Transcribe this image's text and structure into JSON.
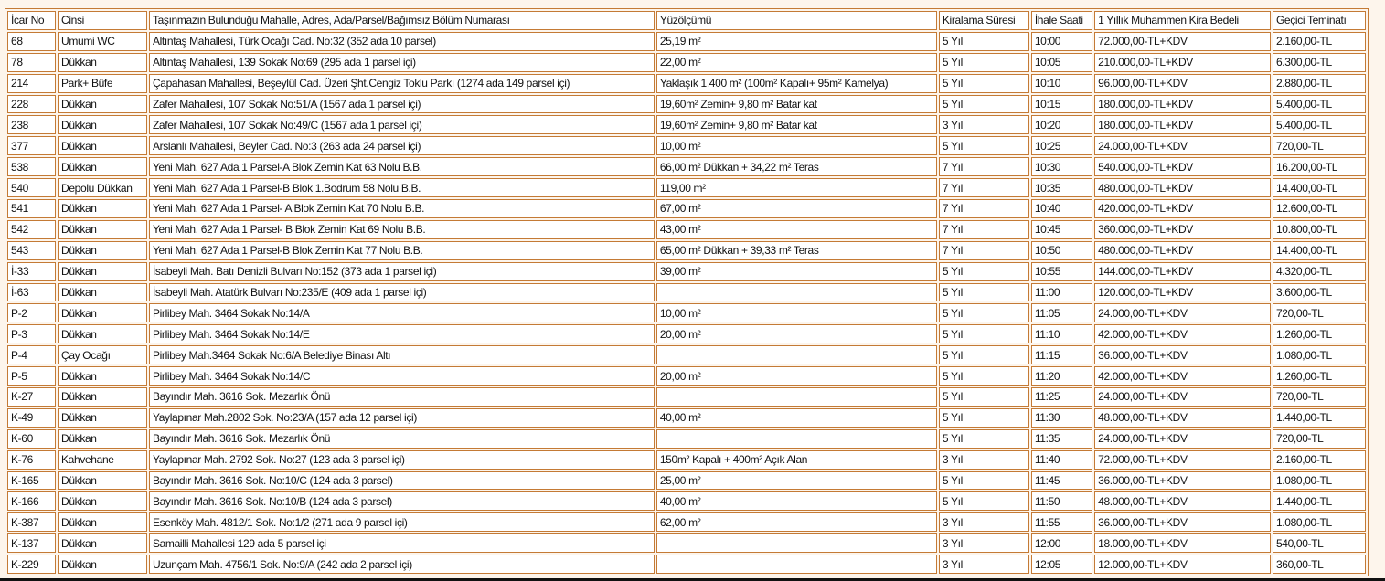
{
  "table": {
    "headers": [
      "İcar No",
      "Cinsi",
      "Taşınmazın Bulunduğu Mahalle, Adres, Ada/Parsel/Bağımsız Bölüm Numarası",
      "Yüzölçümü",
      "Kiralama Süresi",
      "İhale Saati",
      "1 Yıllık Muhammen Kira Bedeli",
      "Geçici Teminatı"
    ],
    "rows": [
      [
        "68",
        "Umumi WC",
        "Altıntaş Mahallesi, Türk Ocağı Cad. No:32 (352 ada 10 parsel)",
        "25,19 m²",
        "5 Yıl",
        "10:00",
        "72.000,00-TL+KDV",
        "2.160,00-TL"
      ],
      [
        "78",
        "Dükkan",
        "Altıntaş Mahallesi, 139 Sokak No:69 (295 ada 1 parsel içi)",
        "22,00 m²",
        "5 Yıl",
        "10:05",
        "210.000,00-TL+KDV",
        "6.300,00-TL"
      ],
      [
        "214",
        "Park+ Büfe",
        "Çapahasan Mahallesi, Beşeylül Cad. Üzeri Şht.Cengiz Toklu Parkı (1274 ada 149 parsel içi)",
        "Yaklaşık 1.400 m² (100m² Kapalı+ 95m² Kamelya)",
        "5 Yıl",
        "10:10",
        "96.000,00-TL+KDV",
        "2.880,00-TL"
      ],
      [
        "228",
        "Dükkan",
        "Zafer Mahallesi, 107 Sokak No:51/A (1567 ada 1 parsel içi)",
        "19,60m² Zemin+ 9,80 m² Batar kat",
        "5 Yıl",
        "10:15",
        "180.000,00-TL+KDV",
        "5.400,00-TL"
      ],
      [
        "238",
        "Dükkan",
        "Zafer Mahallesi, 107 Sokak No:49/C (1567 ada 1 parsel içi)",
        "19,60m² Zemin+ 9,80 m² Batar kat",
        "3 Yıl",
        "10:20",
        "180.000,00-TL+KDV",
        "5.400,00-TL"
      ],
      [
        "377",
        "Dükkan",
        "Arslanlı Mahallesi, Beyler Cad. No:3 (263 ada 24 parsel içi)",
        "10,00 m²",
        "5 Yıl",
        "10:25",
        "24.000,00-TL+KDV",
        "720,00-TL"
      ],
      [
        "538",
        "Dükkan",
        "Yeni Mah. 627 Ada 1 Parsel-A Blok Zemin Kat 63 Nolu B.B.",
        "66,00 m² Dükkan + 34,22 m² Teras",
        "7 Yıl",
        "10:30",
        "540.000,00-TL+KDV",
        "16.200,00-TL"
      ],
      [
        "540",
        "Depolu Dükkan",
        "Yeni Mah. 627 Ada 1 Parsel-B Blok 1.Bodrum 58 Nolu B.B.",
        "119,00 m²",
        "7 Yıl",
        "10:35",
        "480.000,00-TL+KDV",
        "14.400,00-TL"
      ],
      [
        "541",
        "Dükkan",
        "Yeni Mah. 627 Ada 1 Parsel- A Blok Zemin Kat 70 Nolu B.B.",
        "67,00 m²",
        "7 Yıl",
        "10:40",
        "420.000,00-TL+KDV",
        "12.600,00-TL"
      ],
      [
        "542",
        "Dükkan",
        "Yeni Mah. 627 Ada 1 Parsel- B Blok Zemin Kat 69 Nolu B.B.",
        "43,00 m²",
        "7 Yıl",
        "10:45",
        "360.000,00-TL+KDV",
        "10.800,00-TL"
      ],
      [
        "543",
        "Dükkan",
        "Yeni Mah. 627 Ada 1 Parsel-B Blok Zemin Kat 77 Nolu B.B.",
        "65,00 m² Dükkan + 39,33 m² Teras",
        "7 Yıl",
        "10:50",
        "480.000,00-TL+KDV",
        "14.400,00-TL"
      ],
      [
        "İ-33",
        "Dükkan",
        "İsabeyli Mah. Batı Denizli Bulvarı No:152 (373 ada 1 parsel içi)",
        "39,00 m²",
        "5 Yıl",
        "10:55",
        "144.000,00-TL+KDV",
        "4.320,00-TL"
      ],
      [
        "İ-63",
        "Dükkan",
        "İsabeyli Mah. Atatürk Bulvarı No:235/E (409 ada 1 parsel içi)",
        "",
        "5 Yıl",
        "11:00",
        "120.000,00-TL+KDV",
        "3.600,00-TL"
      ],
      [
        "P-2",
        "Dükkan",
        "Pirlibey Mah. 3464 Sokak No:14/A",
        "10,00 m²",
        "5 Yıl",
        "11:05",
        "24.000,00-TL+KDV",
        "720,00-TL"
      ],
      [
        "P-3",
        "Dükkan",
        "Pirlibey Mah. 3464 Sokak No:14/E",
        "20,00 m²",
        "5 Yıl",
        "11:10",
        "42.000,00-TL+KDV",
        "1.260,00-TL"
      ],
      [
        "P-4",
        "Çay Ocağı",
        "Pirlibey Mah.3464 Sokak No:6/A Belediye Binası Altı",
        "",
        "5 Yıl",
        "11:15",
        "36.000,00-TL+KDV",
        "1.080,00-TL"
      ],
      [
        "P-5",
        "Dükkan",
        "Pirlibey Mah. 3464 Sokak No:14/C",
        "20,00 m²",
        "5 Yıl",
        "11:20",
        "42.000,00-TL+KDV",
        "1.260,00-TL"
      ],
      [
        "K-27",
        "Dükkan",
        "Bayındır Mah. 3616 Sok. Mezarlık Önü",
        "",
        "5 Yıl",
        "11:25",
        "24.000,00-TL+KDV",
        "720,00-TL"
      ],
      [
        "K-49",
        "Dükkan",
        "Yaylapınar Mah.2802 Sok. No:23/A (157 ada 12 parsel içi)",
        "40,00 m²",
        "5 Yıl",
        "11:30",
        "48.000,00-TL+KDV",
        "1.440,00-TL"
      ],
      [
        "K-60",
        "Dükkan",
        "Bayındır Mah. 3616 Sok. Mezarlık  Önü",
        "",
        "5 Yıl",
        "11:35",
        "24.000,00-TL+KDV",
        "720,00-TL"
      ],
      [
        "K-76",
        "Kahvehane",
        "Yaylapınar Mah. 2792 Sok. No:27 (123 ada 3 parsel içi)",
        "150m² Kapalı + 400m² Açık  Alan",
        "3 Yıl",
        "11:40",
        "72.000,00-TL+KDV",
        "2.160,00-TL"
      ],
      [
        "K-165",
        "Dükkan",
        "Bayındır Mah. 3616 Sok. No:10/C (124 ada 3 parsel)",
        "25,00 m²",
        "5 Yıl",
        "11:45",
        "36.000,00-TL+KDV",
        "1.080,00-TL"
      ],
      [
        "K-166",
        "Dükkan",
        "Bayındır Mah. 3616 Sok. No:10/B (124 ada 3 parsel)",
        "40,00 m²",
        "5 Yıl",
        "11:50",
        "48.000,00-TL+KDV",
        "1.440,00-TL"
      ],
      [
        "K-387",
        "Dükkan",
        "Esenköy Mah. 4812/1 Sok. No:1/2 (271 ada 9 parsel içi)",
        "62,00 m²",
        "3 Yıl",
        "11:55",
        "36.000,00-TL+KDV",
        "1.080,00-TL"
      ],
      [
        "K-137",
        "Dükkan",
        "Samailli Mahallesi 129 ada 5 parsel  içi",
        "",
        "3 Yıl",
        "12:00",
        "18.000,00-TL+KDV",
        "540,00-TL"
      ],
      [
        "K-229",
        "Dükkan",
        "Uzunçam Mah. 4756/1 Sok. No:9/A  (242 ada 2 parsel içi)",
        "",
        "3 Yıl",
        "12:05",
        "12.000,00-TL+KDV",
        "360,00-TL"
      ]
    ]
  },
  "colors": {
    "border": "#c47a35",
    "background": "#fdf5ec",
    "cell": "#ffffff"
  }
}
